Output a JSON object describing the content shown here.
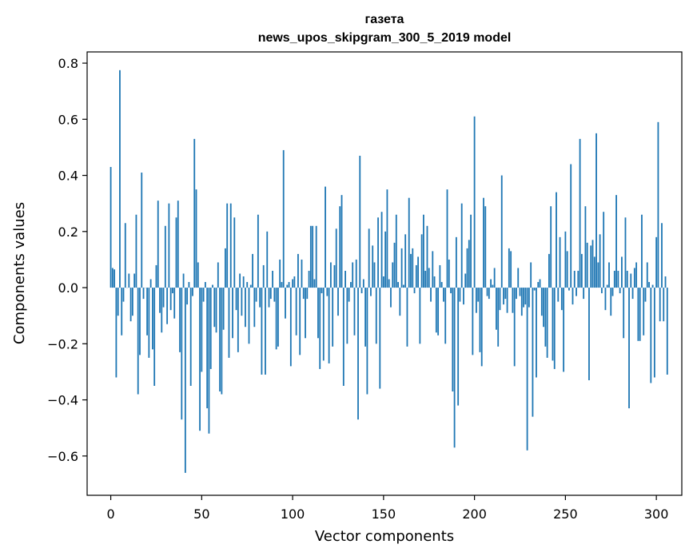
{
  "chart_data": {
    "type": "bar",
    "title": "газета",
    "subtitle": "news_upos_skipgram_300_5_2019 model",
    "xlabel": "Vector components",
    "ylabel": "Components values",
    "xlim": [
      -13,
      314
    ],
    "ylim": [
      -0.74,
      0.84
    ],
    "xticks": [
      0,
      50,
      100,
      150,
      200,
      250,
      300
    ],
    "xtick_labels": [
      "0",
      "50",
      "100",
      "150",
      "200",
      "250",
      "300"
    ],
    "yticks": [
      -0.6,
      -0.4,
      -0.2,
      0.0,
      0.2,
      0.4,
      0.6,
      0.8
    ],
    "ytick_labels": [
      "−0.6",
      "−0.4",
      "−0.2",
      "0.0",
      "0.2",
      "0.4",
      "0.6",
      "0.8"
    ],
    "bar_color": "#1f77b4",
    "grid": false,
    "legend": "none",
    "values": [
      0.43,
      0.07,
      0.065,
      -0.32,
      -0.1,
      0.775,
      -0.17,
      -0.05,
      0.23,
      0.0,
      0.05,
      -0.12,
      -0.1,
      0.05,
      0.26,
      -0.38,
      -0.24,
      0.41,
      -0.04,
      0.0,
      -0.17,
      -0.25,
      0.03,
      -0.22,
      -0.35,
      0.08,
      0.31,
      -0.09,
      -0.16,
      -0.07,
      0.22,
      -0.13,
      0.3,
      -0.08,
      -0.02,
      -0.11,
      0.25,
      0.31,
      -0.23,
      -0.47,
      0.05,
      -0.66,
      -0.06,
      0.02,
      -0.35,
      -0.03,
      0.53,
      0.35,
      0.09,
      -0.51,
      -0.3,
      -0.05,
      0.02,
      -0.43,
      -0.52,
      -0.29,
      0.01,
      -0.14,
      -0.16,
      0.09,
      -0.37,
      -0.38,
      -0.15,
      0.14,
      0.3,
      -0.25,
      0.3,
      -0.18,
      0.25,
      -0.08,
      -0.23,
      0.05,
      -0.1,
      0.04,
      -0.14,
      0.02,
      -0.2,
      0.01,
      0.12,
      -0.14,
      -0.05,
      0.26,
      -0.07,
      -0.31,
      0.08,
      -0.31,
      0.2,
      -0.07,
      -0.04,
      0.06,
      -0.05,
      -0.22,
      -0.21,
      0.1,
      0.02,
      0.49,
      -0.11,
      0.01,
      0.02,
      -0.28,
      0.03,
      0.04,
      -0.17,
      0.12,
      -0.24,
      0.1,
      -0.04,
      -0.18,
      -0.04,
      0.06,
      0.22,
      0.22,
      0.03,
      0.22,
      -0.18,
      -0.29,
      -0.02,
      -0.26,
      0.36,
      -0.03,
      -0.27,
      0.09,
      -0.21,
      0.08,
      0.21,
      -0.1,
      0.29,
      0.33,
      -0.35,
      0.06,
      -0.2,
      -0.05,
      0.02,
      0.09,
      -0.17,
      0.1,
      -0.47,
      0.47,
      -0.02,
      0.03,
      -0.21,
      -0.38,
      0.21,
      -0.03,
      0.15,
      0.09,
      -0.2,
      0.25,
      -0.36,
      0.27,
      0.04,
      0.2,
      0.35,
      0.03,
      -0.07,
      0.09,
      0.16,
      0.26,
      0.02,
      -0.1,
      0.14,
      0.01,
      0.19,
      -0.21,
      0.32,
      0.12,
      0.14,
      -0.02,
      0.08,
      0.11,
      -0.2,
      0.19,
      0.26,
      0.06,
      0.22,
      0.07,
      -0.05,
      0.13,
      0.04,
      -0.16,
      -0.17,
      0.08,
      0.02,
      -0.05,
      -0.2,
      0.35,
      0.1,
      -0.02,
      -0.37,
      -0.57,
      0.18,
      -0.42,
      -0.05,
      0.3,
      -0.06,
      0.05,
      0.14,
      0.17,
      0.26,
      -0.24,
      0.61,
      -0.09,
      -0.05,
      -0.23,
      -0.28,
      0.32,
      0.29,
      -0.03,
      -0.04,
      0.03,
      0.01,
      0.07,
      -0.15,
      -0.21,
      -0.08,
      0.4,
      -0.06,
      -0.04,
      -0.09,
      0.14,
      0.13,
      -0.09,
      -0.28,
      -0.04,
      0.07,
      -0.03,
      -0.1,
      -0.07,
      -0.06,
      -0.58,
      -0.07,
      0.09,
      -0.46,
      -0.01,
      -0.32,
      0.02,
      0.03,
      -0.1,
      -0.14,
      -0.21,
      -0.25,
      0.12,
      0.29,
      -0.26,
      -0.29,
      0.34,
      -0.05,
      0.18,
      -0.08,
      -0.3,
      0.2,
      0.13,
      -0.01,
      0.44,
      -0.06,
      0.06,
      -0.03,
      0.06,
      0.53,
      0.12,
      -0.04,
      0.29,
      0.16,
      -0.33,
      0.15,
      0.17,
      0.11,
      0.55,
      0.09,
      0.19,
      -0.02,
      0.27,
      -0.08,
      0.01,
      0.09,
      -0.1,
      -0.03,
      0.06,
      0.33,
      0.06,
      -0.02,
      0.11,
      -0.18,
      0.25,
      0.06,
      -0.43,
      0.05,
      -0.04,
      0.07,
      0.09,
      -0.19,
      -0.19,
      0.26,
      -0.17,
      -0.05,
      0.09,
      0.02,
      -0.34,
      0.01,
      -0.32,
      0.18,
      0.59,
      -0.12,
      0.23,
      -0.12,
      0.04,
      -0.31
    ]
  }
}
